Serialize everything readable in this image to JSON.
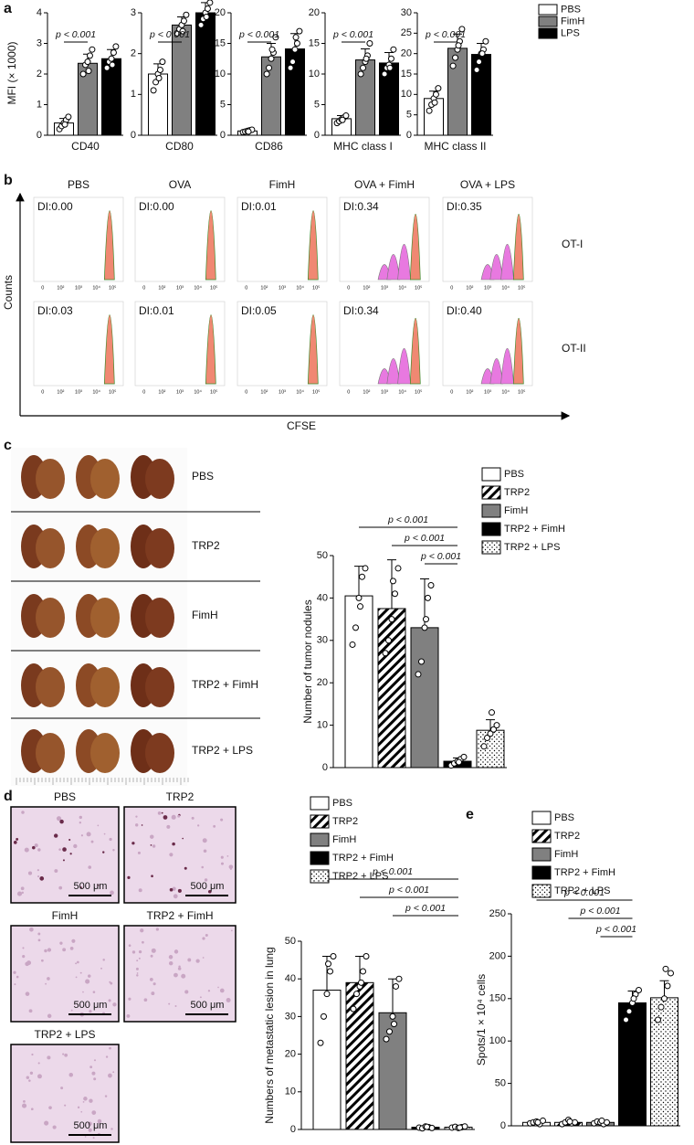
{
  "panel_labels": [
    "a",
    "b",
    "c",
    "d",
    "e"
  ],
  "chart_data": [
    {
      "type": "bar",
      "ylabel": "MFI (× 1000)",
      "xlabel": "CD40",
      "categories": [
        "PBS",
        "FimH",
        "LPS"
      ],
      "colors": [
        "#ffffff",
        "#808080",
        "#000000"
      ],
      "legend": true,
      "values": [
        0.4,
        2.35,
        2.5
      ],
      "errors": [
        0.15,
        0.3,
        0.3
      ],
      "points": [
        [
          0.2,
          0.3,
          0.4,
          0.5,
          0.6,
          0.35
        ],
        [
          2.0,
          2.3,
          2.4,
          2.6,
          2.8,
          2.1
        ],
        [
          2.2,
          2.4,
          2.5,
          2.7,
          2.9,
          2.3
        ]
      ],
      "ylim": [
        0,
        4
      ],
      "yticks": [
        0,
        1,
        2,
        3,
        4
      ],
      "annotations": [
        {
          "text": "p < 0.001",
          "from": 0,
          "to": 1
        }
      ]
    },
    {
      "type": "bar",
      "xlabel": "CD80",
      "colors": [
        "#ffffff",
        "#808080",
        "#000000"
      ],
      "values": [
        1.5,
        2.7,
        3.0
      ],
      "errors": [
        0.25,
        0.2,
        0.25
      ],
      "points": [
        [
          1.1,
          1.3,
          1.5,
          1.6,
          1.8,
          1.4
        ],
        [
          2.5,
          2.6,
          2.7,
          2.8,
          2.95,
          2.55
        ],
        [
          2.7,
          2.85,
          3.0,
          3.1,
          3.25,
          2.9
        ]
      ],
      "ylim": [
        0,
        3
      ],
      "yticks": [
        0,
        1,
        2,
        3
      ],
      "annotations": [
        {
          "text": "p < 0.001",
          "from": 0,
          "to": 1
        }
      ]
    },
    {
      "type": "bar",
      "xlabel": "CD86",
      "colors": [
        "#ffffff",
        "#808080",
        "#000000"
      ],
      "values": [
        0.7,
        12.8,
        14.1
      ],
      "errors": [
        0.2,
        2.2,
        2.5
      ],
      "points": [
        [
          0.5,
          0.6,
          0.7,
          0.8,
          0.9,
          0.6
        ],
        [
          10,
          11,
          12.5,
          13.5,
          16,
          14
        ],
        [
          11,
          12,
          14,
          15,
          17,
          16
        ]
      ],
      "ylim": [
        0,
        20
      ],
      "yticks": [
        0,
        5,
        10,
        15,
        20
      ],
      "annotations": [
        {
          "text": "p < 0.001",
          "from": 0,
          "to": 1
        }
      ]
    },
    {
      "type": "bar",
      "xlabel": "MHC class I",
      "colors": [
        "#ffffff",
        "#808080",
        "#000000"
      ],
      "values": [
        2.7,
        12.3,
        11.8
      ],
      "errors": [
        0.5,
        1.8,
        1.7
      ],
      "points": [
        [
          2,
          2.3,
          2.6,
          2.9,
          3.2,
          2.5
        ],
        [
          10,
          11,
          12,
          13,
          15,
          12.5
        ],
        [
          10,
          11,
          11.5,
          12.5,
          14,
          11
        ]
      ],
      "ylim": [
        0,
        20
      ],
      "yticks": [
        0,
        5,
        10,
        15,
        20
      ],
      "annotations": [
        {
          "text": "p < 0.001",
          "from": 0,
          "to": 1
        }
      ]
    },
    {
      "type": "bar",
      "xlabel": "MHC class II",
      "colors": [
        "#ffffff",
        "#808080",
        "#000000"
      ],
      "values": [
        9,
        21.3,
        19.8
      ],
      "errors": [
        1.8,
        3.5,
        2.7
      ],
      "points": [
        [
          6,
          7.5,
          9,
          10,
          11.5,
          8
        ],
        [
          17,
          19,
          21,
          23,
          26,
          22
        ],
        [
          16,
          18,
          20,
          21,
          23,
          20
        ]
      ],
      "ylim": [
        0,
        30
      ],
      "yticks": [
        0,
        5,
        10,
        15,
        20,
        25,
        30
      ],
      "annotations": [
        {
          "text": "p < 0.001",
          "from": 0,
          "to": 1
        }
      ]
    },
    {
      "type": "bar",
      "ylabel": "Number of tumor nodules",
      "categories": [
        "PBS",
        "TRP2",
        "FimH",
        "TRP2 + FimH",
        "TRP2 + LPS"
      ],
      "legend": true,
      "colors": [
        "#ffffff",
        "#ffffff",
        "#808080",
        "#000000",
        "#ffffff"
      ],
      "patterns": [
        "solid",
        "hatch",
        "solid",
        "solid",
        "dots"
      ],
      "values": [
        40.5,
        37.5,
        33,
        1.5,
        8.8
      ],
      "errors": [
        7,
        11.5,
        11.5,
        0.8,
        2.5
      ],
      "points": [
        [
          29,
          33,
          40,
          45,
          47,
          38
        ],
        [
          27,
          30,
          35,
          41,
          47,
          44
        ],
        [
          22,
          25,
          33,
          40,
          43,
          35
        ],
        [
          0.5,
          1,
          1.5,
          2,
          2.5,
          1.3
        ],
        [
          5,
          7,
          8,
          9,
          10,
          13
        ]
      ],
      "ylim": [
        0,
        50
      ],
      "yticks": [
        0,
        10,
        20,
        30,
        40,
        50
      ],
      "annotations": [
        {
          "text": "p < 0.001",
          "from": 0,
          "to": 3
        },
        {
          "text": "p < 0.001",
          "from": 1,
          "to": 3
        },
        {
          "text": "p < 0.001",
          "from": 2,
          "to": 3
        }
      ]
    },
    {
      "type": "bar",
      "ylabel": "Numbers of metastatic lesion in lung",
      "categories": [
        "PBS",
        "TRP2",
        "FimH",
        "TRP2 + FimH",
        "TRP2 + LPS"
      ],
      "legend": true,
      "colors": [
        "#ffffff",
        "#ffffff",
        "#808080",
        "#000000",
        "#ffffff"
      ],
      "patterns": [
        "solid",
        "hatch",
        "solid",
        "solid",
        "dots"
      ],
      "values": [
        37,
        39,
        31,
        0.6,
        0.6
      ],
      "errors": [
        9,
        7,
        9,
        0.3,
        0.3
      ],
      "points": [
        [
          23,
          30,
          36,
          42,
          46,
          44
        ],
        [
          32,
          36,
          38,
          42,
          46,
          39
        ],
        [
          24,
          26,
          30,
          38,
          40,
          28
        ],
        [
          0.5,
          0.3,
          0.8,
          0.6,
          0.4,
          0.7
        ],
        [
          0.5,
          0.7,
          0.4,
          0.6,
          0.8,
          0.5
        ]
      ],
      "ylim": [
        0,
        50
      ],
      "yticks": [
        0,
        10,
        20,
        30,
        40,
        50
      ],
      "annotations": [
        {
          "text": "p < 0.001",
          "from": 0,
          "to": 4
        },
        {
          "text": "p < 0.001",
          "from": 1,
          "to": 4
        },
        {
          "text": "p < 0.001",
          "from": 2,
          "to": 4
        }
      ]
    },
    {
      "type": "bar",
      "ylabel": "Spots/1 × 10⁴ cells",
      "categories": [
        "PBS",
        "TRP2",
        "FimH",
        "TRP2 + FimH",
        "TRP2 + LPS"
      ],
      "legend": true,
      "colors": [
        "#ffffff",
        "#ffffff",
        "#808080",
        "#000000",
        "#ffffff"
      ],
      "patterns": [
        "solid",
        "hatch",
        "solid",
        "solid",
        "dots"
      ],
      "values": [
        4,
        4,
        4,
        145,
        151
      ],
      "errors": [
        1.5,
        1.5,
        1.5,
        14,
        20
      ],
      "points": [
        [
          3,
          4,
          5,
          2,
          6,
          4
        ],
        [
          2,
          4,
          7,
          3,
          4,
          5
        ],
        [
          3,
          5,
          4,
          2,
          4,
          6
        ],
        [
          125,
          135,
          145,
          155,
          160,
          150
        ],
        [
          125,
          140,
          150,
          165,
          180,
          185
        ]
      ],
      "ylim": [
        0,
        250
      ],
      "yticks": [
        0,
        50,
        100,
        150,
        200,
        250
      ],
      "annotations": [
        {
          "text": "p < 0.001",
          "from": 0,
          "to": 3
        },
        {
          "text": "p < 0.001",
          "from": 1,
          "to": 3
        },
        {
          "text": "p < 0.001",
          "from": 2,
          "to": 3
        }
      ]
    }
  ],
  "flow": {
    "columns": [
      "PBS",
      "OVA",
      "FimH",
      "OVA + FimH",
      "OVA + LPS"
    ],
    "rows": [
      "OT-I",
      "OT-II"
    ],
    "di": [
      [
        "DI:0.00",
        "DI:0.00",
        "DI:0.01",
        "DI:0.34",
        "DI:0.35"
      ],
      [
        "DI:0.03",
        "DI:0.01",
        "DI:0.05",
        "DI:0.34",
        "DI:0.40"
      ]
    ],
    "xticks": [
      "0",
      "10²",
      "10³",
      "10⁴",
      "10⁵"
    ],
    "ylabel": "Counts",
    "xlabel": "CFSE"
  },
  "lungs": {
    "labels": [
      "PBS",
      "TRP2",
      "FimH",
      "TRP2 + FimH",
      "TRP2 + LPS"
    ]
  },
  "histology": {
    "labels": [
      "PBS",
      "TRP2",
      "FimH",
      "TRP2 + FimH",
      "TRP2 + LPS"
    ],
    "scale_bar": "500 μm"
  }
}
